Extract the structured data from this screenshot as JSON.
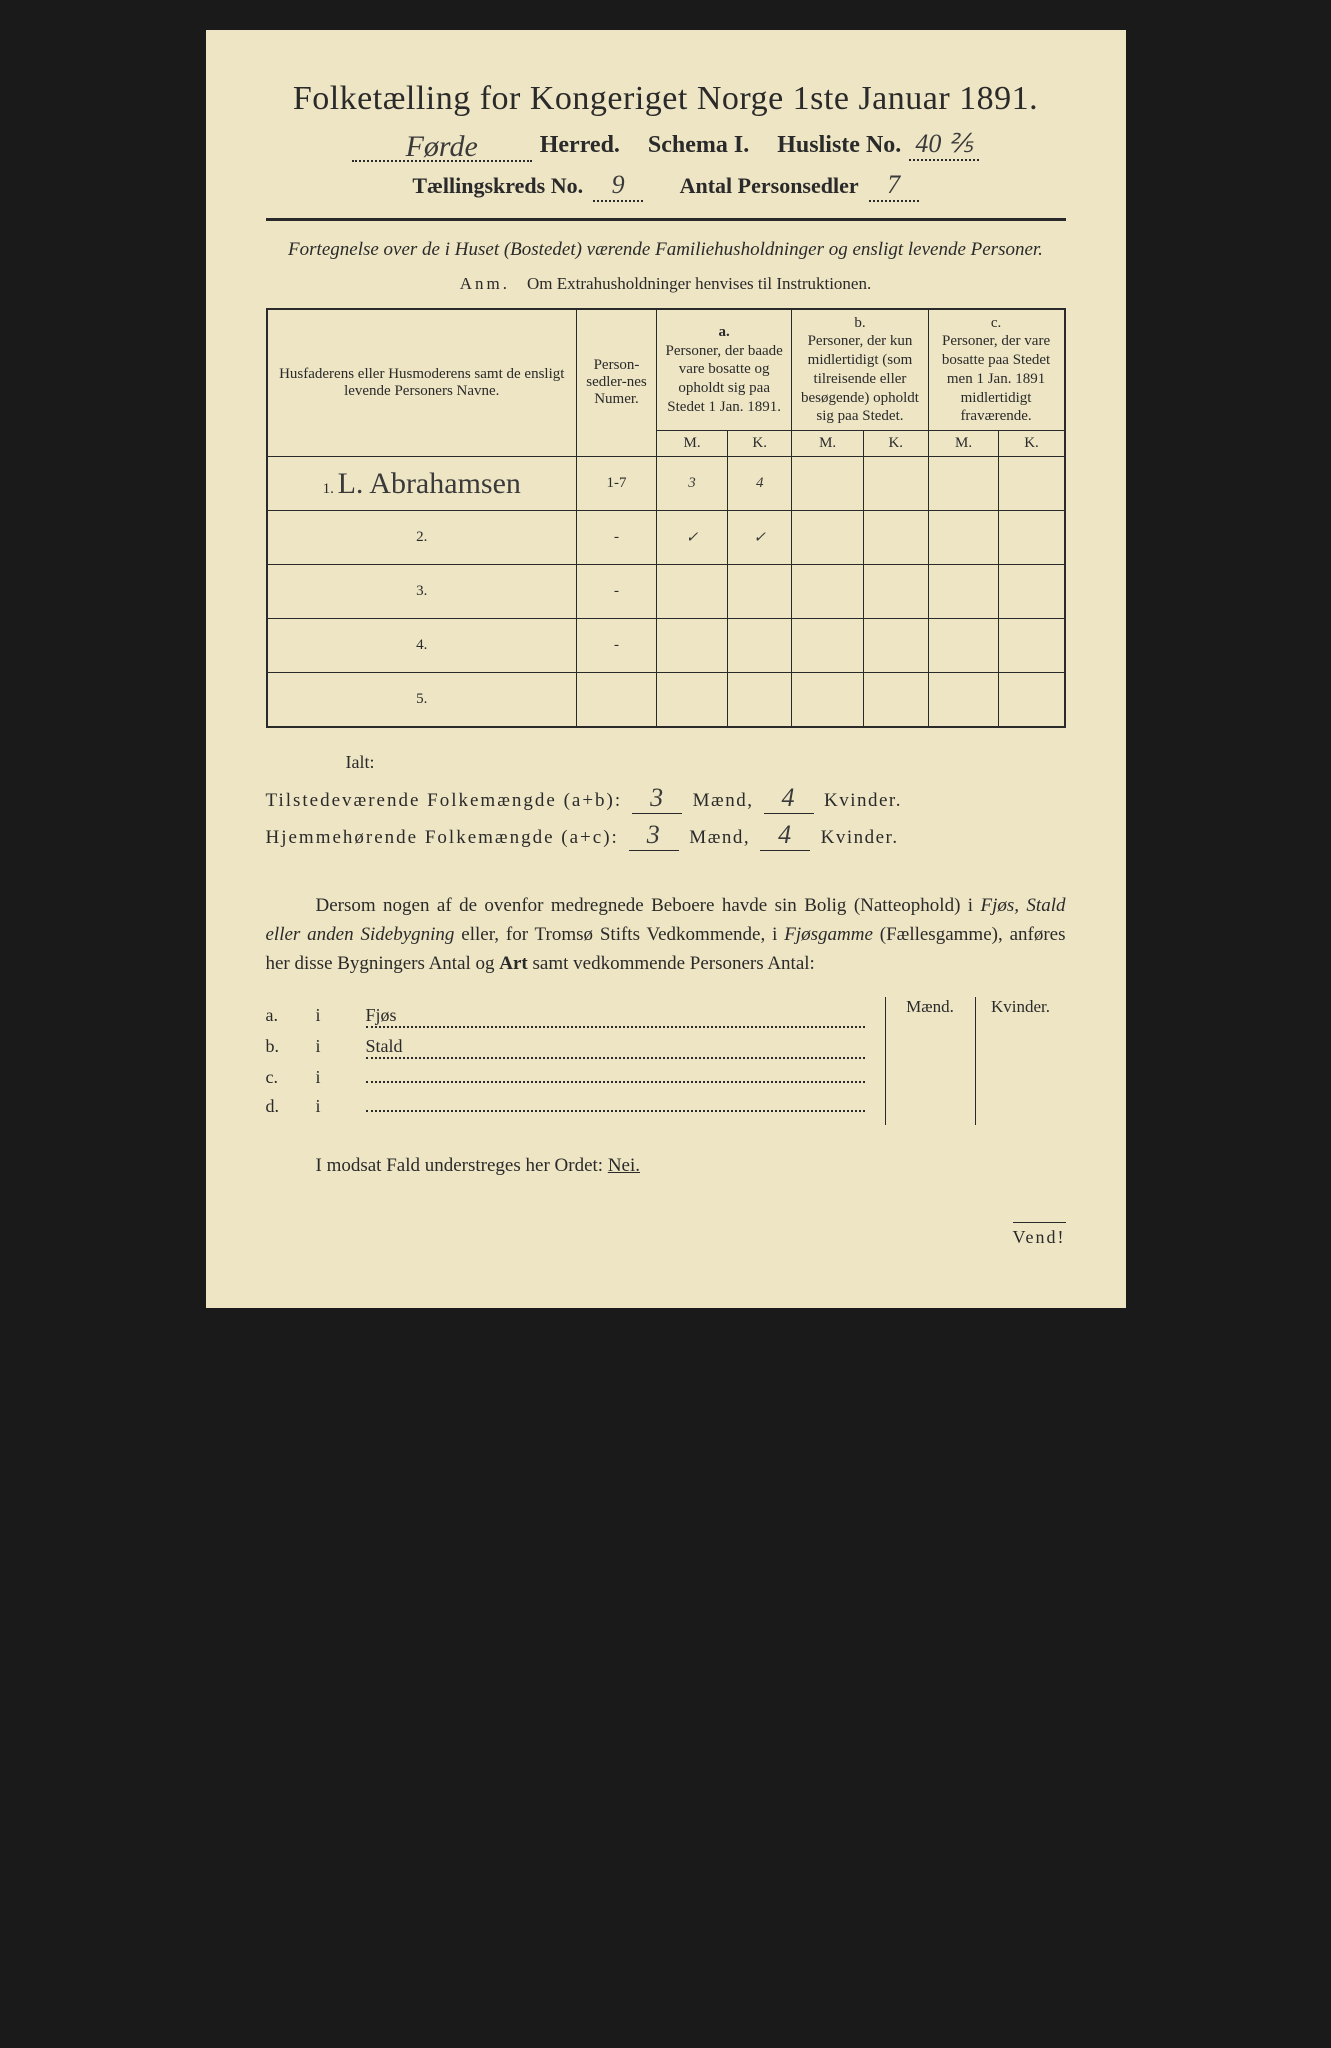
{
  "header": {
    "main_title": "Folketælling for Kongeriget Norge 1ste Januar 1891.",
    "herred_value": "Førde",
    "herred_label": "Herred.",
    "schema_label": "Schema I.",
    "husliste_label": "Husliste No.",
    "husliste_value": "40 ⅖",
    "kreds_label": "Tællingskreds No.",
    "kreds_value": "9",
    "personsedler_label": "Antal Personsedler",
    "personsedler_value": "7"
  },
  "subtitle": "Fortegnelse over de i Huset (Bostedet) værende Familiehusholdninger og ensligt levende Personer.",
  "anm": {
    "label": "Anm.",
    "text": "Om Extrahusholdninger henvises til Instruktionen."
  },
  "table": {
    "col_name": "Husfaderens eller Husmoderens samt de ensligt levende Personers Navne.",
    "col_num": "Person-sedler-nes Numer.",
    "col_a_tag": "a.",
    "col_a": "Personer, der baade vare bosatte og opholdt sig paa Stedet 1 Jan. 1891.",
    "col_b_tag": "b.",
    "col_b": "Personer, der kun midlertidigt (som tilreisende eller besøgende) opholdt sig paa Stedet.",
    "col_c_tag": "c.",
    "col_c": "Personer, der vare bosatte paa Stedet men 1 Jan. 1891 midlertidigt fraværende.",
    "m": "M.",
    "k": "K.",
    "rows": [
      {
        "n": "1.",
        "name": "L. Abrahamsen",
        "num": "1-7",
        "am": "3",
        "ak": "4",
        "bm": "",
        "bk": "",
        "cm": "",
        "ck": ""
      },
      {
        "n": "2.",
        "name": "",
        "num": "-",
        "am": "✓",
        "ak": "✓",
        "bm": "",
        "bk": "",
        "cm": "",
        "ck": ""
      },
      {
        "n": "3.",
        "name": "",
        "num": "-",
        "am": "",
        "ak": "",
        "bm": "",
        "bk": "",
        "cm": "",
        "ck": ""
      },
      {
        "n": "4.",
        "name": "",
        "num": "-",
        "am": "",
        "ak": "",
        "bm": "",
        "bk": "",
        "cm": "",
        "ck": ""
      },
      {
        "n": "5.",
        "name": "",
        "num": "",
        "am": "",
        "ak": "",
        "bm": "",
        "bk": "",
        "cm": "",
        "ck": ""
      }
    ]
  },
  "totals": {
    "ialt": "Ialt:",
    "row1_label": "Tilstedeværende Folkemængde (a+b):",
    "row2_label": "Hjemmehørende Folkemængde (a+c):",
    "maend": "Mænd,",
    "kvinder": "Kvinder.",
    "r1_m": "3",
    "r1_k": "4",
    "r2_m": "3",
    "r2_k": "4"
  },
  "para": "Dersom nogen af de ovenfor medregnede Beboere havde sin Bolig (Natteophold) i Fjøs, Stald eller anden Sidebygning eller, for Tromsø Stifts Vedkommende, i Fjøsgamme (Fællesgamme), anføres her disse Bygningers Antal og Art samt vedkommende Personers Antal:",
  "side": {
    "maend": "Mænd.",
    "kvinder": "Kvinder.",
    "rows": [
      {
        "letter": "a.",
        "i": "i",
        "label": "Fjøs"
      },
      {
        "letter": "b.",
        "i": "i",
        "label": "Stald"
      },
      {
        "letter": "c.",
        "i": "i",
        "label": ""
      },
      {
        "letter": "d.",
        "i": "i",
        "label": ""
      }
    ]
  },
  "nei": {
    "text": "I modsat Fald understreges her Ordet:",
    "word": "Nei."
  },
  "vend": "Vend!",
  "colors": {
    "paper": "#ede5c4",
    "ink": "#2a2a2a",
    "background": "#1a1a1a"
  }
}
